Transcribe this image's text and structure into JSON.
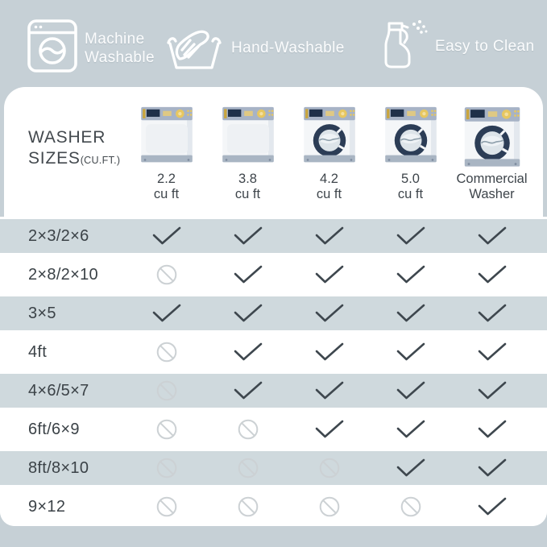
{
  "features": [
    {
      "icon": "washing-machine-icon",
      "label": "Machine Washable"
    },
    {
      "icon": "hand-wash-icon",
      "label": "Hand-Washable"
    },
    {
      "icon": "spray-bottle-icon",
      "label": "Easy to Clean"
    }
  ],
  "table": {
    "title_line1": "WASHER",
    "title_line2": "SIZES",
    "title_suffix": "(CU.FT.)",
    "columns": [
      {
        "label_line1": "2.2",
        "label_line2": "cu ft",
        "washer_type": "plain"
      },
      {
        "label_line1": "3.8",
        "label_line2": "cu ft",
        "washer_type": "plain"
      },
      {
        "label_line1": "4.2",
        "label_line2": "cu ft",
        "washer_type": "window"
      },
      {
        "label_line1": "5.0",
        "label_line2": "cu ft",
        "washer_type": "window"
      },
      {
        "label_line1": "Commercial",
        "label_line2": "Washer",
        "washer_type": "window"
      }
    ],
    "rows": [
      {
        "label": "2×3/2×6",
        "cells": [
          "yes",
          "yes",
          "yes",
          "yes",
          "yes"
        ]
      },
      {
        "label": "2×8/2×10",
        "cells": [
          "no",
          "yes",
          "yes",
          "yes",
          "yes"
        ]
      },
      {
        "label": "3×5",
        "cells": [
          "yes",
          "yes",
          "yes",
          "yes",
          "yes"
        ]
      },
      {
        "label": "4ft",
        "cells": [
          "no",
          "yes",
          "yes",
          "yes",
          "yes"
        ]
      },
      {
        "label": "4×6/5×7",
        "cells": [
          "no",
          "yes",
          "yes",
          "yes",
          "yes"
        ]
      },
      {
        "label": "6ft/6×9",
        "cells": [
          "no",
          "no",
          "yes",
          "yes",
          "yes"
        ]
      },
      {
        "label": "8ft/8×10",
        "cells": [
          "no",
          "no",
          "no",
          "yes",
          "yes"
        ]
      },
      {
        "label": "9×12",
        "cells": [
          "no",
          "no",
          "no",
          "no",
          "yes"
        ]
      }
    ],
    "legend": {
      "yes": "check-icon",
      "no": "not-suitable-icon"
    }
  },
  "chart_data": {
    "type": "table",
    "title": "WASHER SIZES (CU.FT.)",
    "columns": [
      "2.2 cu ft",
      "3.8 cu ft",
      "4.2 cu ft",
      "5.0 cu ft",
      "Commercial Washer"
    ],
    "rows": [
      "2×3/2×6",
      "2×8/2×10",
      "3×5",
      "4ft",
      "4×6/5×7",
      "6ft/6×9",
      "8ft/8×10",
      "9×12"
    ],
    "values": [
      [
        true,
        true,
        true,
        true,
        true
      ],
      [
        false,
        true,
        true,
        true,
        true
      ],
      [
        true,
        true,
        true,
        true,
        true
      ],
      [
        false,
        true,
        true,
        true,
        true
      ],
      [
        false,
        true,
        true,
        true,
        true
      ],
      [
        false,
        false,
        true,
        true,
        true
      ],
      [
        false,
        false,
        false,
        true,
        true
      ],
      [
        false,
        false,
        false,
        false,
        true
      ]
    ],
    "legend": {
      "true": "machine-washable in this washer size",
      "false": "not suitable"
    }
  },
  "colors": {
    "background": "#c6d0d6",
    "card": "#ffffff",
    "stripe": "#cfd9dd",
    "ink": "#3b4247",
    "check": "#3e474e",
    "no_icon": "#ccd1d4",
    "washer_body": "#f4f6f8",
    "washer_panel": "#a7b3c6",
    "washer_display": "#1f3049",
    "washer_knob": "#e7c760",
    "washer_base": "#a9b5c3",
    "washer_door": "#2c3d56",
    "washer_glass": "#dde4e9"
  }
}
